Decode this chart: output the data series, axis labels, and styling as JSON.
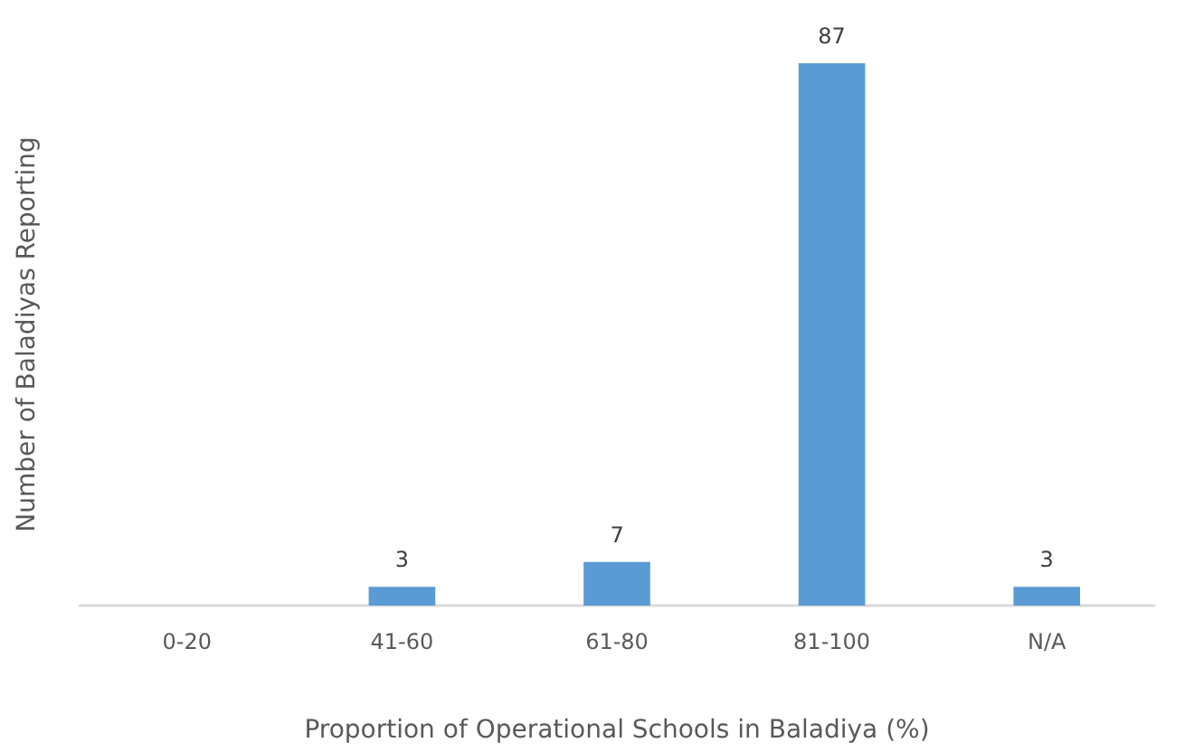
{
  "chart_data": {
    "type": "bar",
    "categories": [
      "0-20",
      "41-60",
      "61-80",
      "81-100",
      "N/A"
    ],
    "values": [
      null,
      3,
      7,
      87,
      3
    ],
    "color": "#5b9bd5",
    "data_labels": true,
    "xlabel": "Proportion of Operational Schools in Baladiya (%)",
    "ylabel": "Number of Baladiyas Reporting",
    "tick_labels": "x"
  }
}
